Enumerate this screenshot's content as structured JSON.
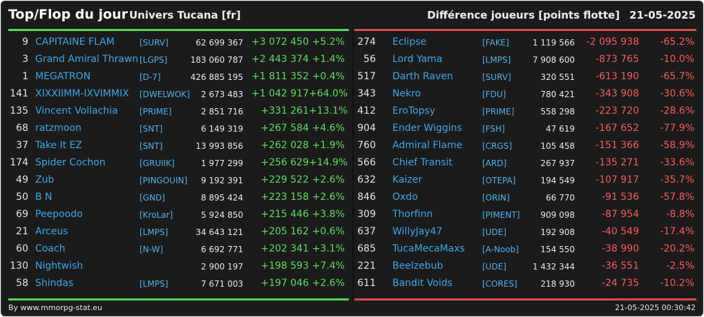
{
  "header": {
    "title": "Top/Flop du jour",
    "subtitle": "Univers Tucana [fr]",
    "description": "Différence joueurs [points flotte]",
    "date": "21-05-2025"
  },
  "colors": {
    "top_accent": "#4fe04f",
    "flop_accent": "#e04a4a",
    "player_name": "#3aa8f0",
    "positive": "#5ce05c",
    "negative": "#ff5a5a"
  },
  "top": [
    {
      "rank": "9",
      "name": "CAPITAINE FLAM",
      "alliance": "[SURV]",
      "points": "62 699 367",
      "diff": "+3 072 450",
      "pct": "+5.2%"
    },
    {
      "rank": "3",
      "name": "Grand Amiral Thrawn",
      "alliance": "[LGPS]",
      "points": "183 060 787",
      "diff": "+2 443 374",
      "pct": "+1.4%"
    },
    {
      "rank": "1",
      "name": "MEGATRON",
      "alliance": "[D-7]",
      "points": "426 885 195",
      "diff": "+1 811 352",
      "pct": "+0.4%"
    },
    {
      "rank": "141",
      "name": "XIXXIIMM-IXVIMMIX",
      "alliance": "[DWELWOK]",
      "points": "2 673 483",
      "diff": "+1 042 917",
      "pct": "+64.0%"
    },
    {
      "rank": "135",
      "name": "Vincent Vollachia",
      "alliance": "[PRIME]",
      "points": "2 851 716",
      "diff": "+331 261",
      "pct": "+13.1%"
    },
    {
      "rank": "68",
      "name": "ratzmoon",
      "alliance": "[SNT]",
      "points": "6 149 319",
      "diff": "+267 584",
      "pct": "+4.6%"
    },
    {
      "rank": "37",
      "name": "Take It EZ",
      "alliance": "[SNT]",
      "points": "13 993 856",
      "diff": "+262 028",
      "pct": "+1.9%"
    },
    {
      "rank": "174",
      "name": "Spider Cochon",
      "alliance": "[GRUIIK]",
      "points": "1 977 299",
      "diff": "+256 629",
      "pct": "+14.9%"
    },
    {
      "rank": "49",
      "name": "Zub",
      "alliance": "[PINGOUIN]",
      "points": "9 192 391",
      "diff": "+229 522",
      "pct": "+2.6%"
    },
    {
      "rank": "50",
      "name": "B N",
      "alliance": "[GND]",
      "points": "8 895 424",
      "diff": "+223 158",
      "pct": "+2.6%"
    },
    {
      "rank": "69",
      "name": "Peepoodo",
      "alliance": "[KroLar]",
      "points": "5 924 850",
      "diff": "+215 446",
      "pct": "+3.8%"
    },
    {
      "rank": "21",
      "name": "Arceus",
      "alliance": "[LMPS]",
      "points": "34 643 121",
      "diff": "+205 162",
      "pct": "+0.6%"
    },
    {
      "rank": "60",
      "name": "Coach",
      "alliance": "[N-W]",
      "points": "6 692 771",
      "diff": "+202 341",
      "pct": "+3.1%"
    },
    {
      "rank": "130",
      "name": "Nightwish",
      "alliance": "",
      "points": "2 900 197",
      "diff": "+198 593",
      "pct": "+7.4%"
    },
    {
      "rank": "58",
      "name": "Shindas",
      "alliance": "[LMPS]",
      "points": "7 671 003",
      "diff": "+197 046",
      "pct": "+2.6%"
    }
  ],
  "flop": [
    {
      "rank": "274",
      "name": "Eclipse",
      "alliance": "[FAKE]",
      "points": "1 119 566",
      "diff": "-2 095 938",
      "pct": "-65.2%"
    },
    {
      "rank": "56",
      "name": "Lord Yama",
      "alliance": "[LMPS]",
      "points": "7 908 600",
      "diff": "-873 765",
      "pct": "-10.0%"
    },
    {
      "rank": "517",
      "name": "Darth Raven",
      "alliance": "[SURV]",
      "points": "320 551",
      "diff": "-613 190",
      "pct": "-65.7%"
    },
    {
      "rank": "343",
      "name": "Nekro",
      "alliance": "[FDU]",
      "points": "780 421",
      "diff": "-343 908",
      "pct": "-30.6%"
    },
    {
      "rank": "412",
      "name": "EroTopsy",
      "alliance": "[PRIME]",
      "points": "558 298",
      "diff": "-223 720",
      "pct": "-28.6%"
    },
    {
      "rank": "904",
      "name": "Ender Wiggins",
      "alliance": "[FSH]",
      "points": "47 619",
      "diff": "-167 652",
      "pct": "-77.9%"
    },
    {
      "rank": "760",
      "name": "Admiral Flame",
      "alliance": "[CRGS]",
      "points": "105 458",
      "diff": "-151 366",
      "pct": "-58.9%"
    },
    {
      "rank": "566",
      "name": "Chief Transit",
      "alliance": "[ARD]",
      "points": "267 937",
      "diff": "-135 271",
      "pct": "-33.6%"
    },
    {
      "rank": "632",
      "name": "Kaizer",
      "alliance": "[OTEPA]",
      "points": "194 549",
      "diff": "-107 917",
      "pct": "-35.7%"
    },
    {
      "rank": "846",
      "name": "Oxdo",
      "alliance": "[ORIN]",
      "points": "66 770",
      "diff": "-91 536",
      "pct": "-57.8%"
    },
    {
      "rank": "309",
      "name": "Thorfinn",
      "alliance": "[PIMENT]",
      "points": "909 098",
      "diff": "-87 954",
      "pct": "-8.8%"
    },
    {
      "rank": "637",
      "name": "WillyJay47",
      "alliance": "[UDE]",
      "points": "192 908",
      "diff": "-40 549",
      "pct": "-17.4%"
    },
    {
      "rank": "685",
      "name": "TucaMecaMaxs",
      "alliance": "[A-Noob]",
      "points": "154 550",
      "diff": "-38 990",
      "pct": "-20.2%"
    },
    {
      "rank": "221",
      "name": "Beelzebub",
      "alliance": "[UDE]",
      "points": "1 432 344",
      "diff": "-36 551",
      "pct": "-2.5%"
    },
    {
      "rank": "611",
      "name": "Bandit Voids",
      "alliance": "[CORES]",
      "points": "218 930",
      "diff": "-24 735",
      "pct": "-10.2%"
    }
  ],
  "footer": {
    "credit": "By www.mmorpg-stat.eu",
    "timestamp": "21-05-2025 00:30:42"
  }
}
